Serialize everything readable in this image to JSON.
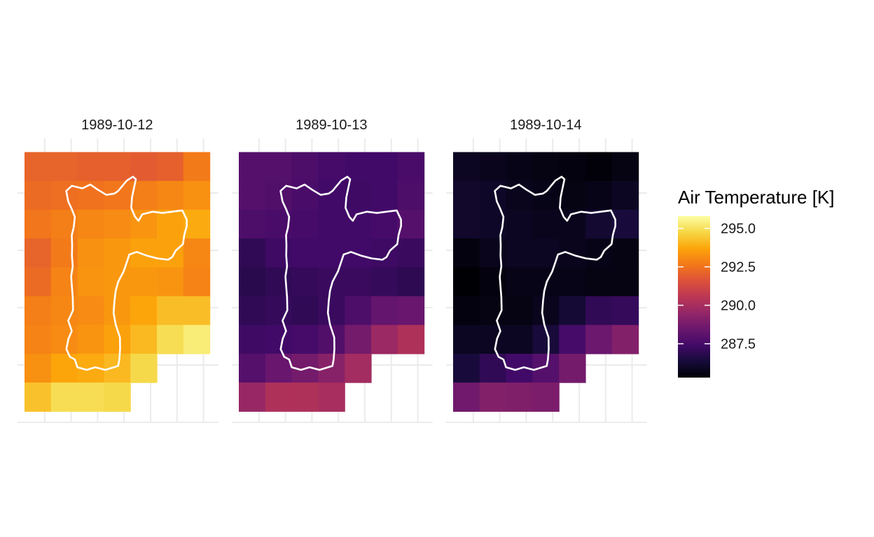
{
  "chart_data": {
    "type": "heatmap",
    "facets": [
      {
        "title": "1989-10-12",
        "values": [
          [
            292.1,
            292.1,
            292.0,
            292.0,
            291.9,
            292.0,
            292.7
          ],
          [
            292.3,
            292.4,
            292.5,
            292.6,
            292.8,
            293.0,
            293.2
          ],
          [
            292.6,
            292.8,
            293.0,
            293.1,
            293.3,
            293.6,
            293.8
          ],
          [
            292.1,
            292.7,
            293.2,
            293.4,
            293.6,
            293.6,
            293.0
          ],
          [
            292.3,
            292.9,
            293.3,
            293.4,
            293.4,
            293.3,
            292.9
          ],
          [
            292.8,
            293.0,
            293.1,
            293.4,
            293.7,
            294.2,
            294.2
          ],
          [
            292.9,
            293.1,
            293.3,
            293.6,
            294.1,
            294.9,
            295.3
          ],
          [
            293.2,
            293.7,
            293.8,
            294.1,
            294.8,
            null,
            null
          ],
          [
            294.3,
            294.9,
            294.9,
            294.8,
            null,
            null,
            null
          ]
        ]
      },
      {
        "title": "1989-10-13",
        "values": [
          [
            287.9,
            287.9,
            287.7,
            287.5,
            287.4,
            287.4,
            287.6
          ],
          [
            287.9,
            287.8,
            287.6,
            287.4,
            287.3,
            287.4,
            287.7
          ],
          [
            287.7,
            287.6,
            287.5,
            287.4,
            287.4,
            287.5,
            287.9
          ],
          [
            287.0,
            287.3,
            287.4,
            287.4,
            287.4,
            287.3,
            287.2
          ],
          [
            286.8,
            287.0,
            287.1,
            287.2,
            287.2,
            287.1,
            286.9
          ],
          [
            287.0,
            287.1,
            287.0,
            287.2,
            287.7,
            288.3,
            288.4
          ],
          [
            287.3,
            287.4,
            287.5,
            287.8,
            288.7,
            289.7,
            290.2
          ],
          [
            287.9,
            288.4,
            288.7,
            289.2,
            289.9,
            null,
            null
          ],
          [
            289.6,
            290.2,
            290.2,
            290.0,
            null,
            null,
            null
          ]
        ]
      },
      {
        "title": "1989-10-14",
        "values": [
          [
            285.9,
            285.8,
            285.7,
            285.6,
            285.5,
            285.4,
            285.6
          ],
          [
            286.1,
            286.0,
            285.8,
            285.7,
            285.6,
            285.7,
            285.9
          ],
          [
            286.1,
            286.0,
            285.9,
            285.8,
            285.8,
            286.2,
            286.4
          ],
          [
            285.5,
            285.8,
            285.9,
            285.9,
            285.8,
            285.7,
            285.6
          ],
          [
            285.3,
            285.5,
            285.7,
            285.7,
            285.7,
            285.6,
            285.6
          ],
          [
            285.5,
            285.6,
            285.6,
            285.8,
            286.3,
            287.0,
            287.1
          ],
          [
            285.9,
            285.9,
            285.9,
            286.4,
            287.5,
            288.5,
            289.1
          ],
          [
            286.4,
            287.0,
            287.4,
            287.9,
            288.7,
            null,
            null
          ],
          [
            288.6,
            289.1,
            289.0,
            288.9,
            null,
            null,
            null
          ]
        ]
      }
    ],
    "rows": 9,
    "cols": 7,
    "legend": {
      "title": "Air Temperature [K]",
      "ticks": [
        295.0,
        292.5,
        290.0,
        287.5
      ],
      "tick_labels": [
        "295.0",
        "292.5",
        "290.0",
        "287.5"
      ],
      "range": [
        285.3,
        295.8
      ],
      "palette": "inferno",
      "placement": "right"
    },
    "outline_color": "#ffffff",
    "grid": true,
    "colors": {
      "grid": "#ebebeb",
      "background": "#ffffff",
      "outline": "#ffffff"
    }
  }
}
